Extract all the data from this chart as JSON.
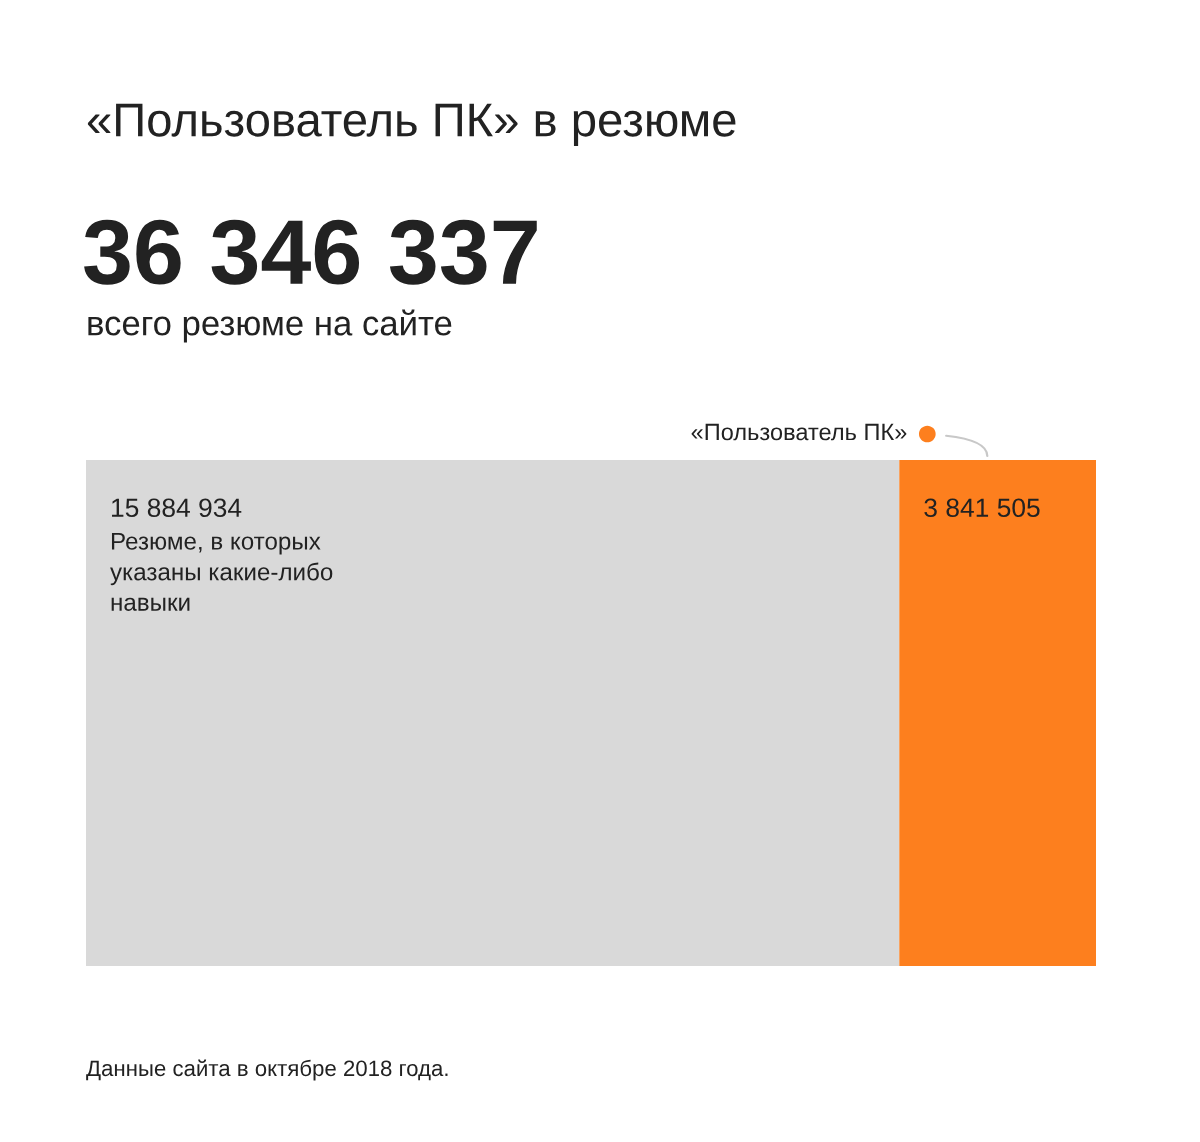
{
  "chart_data": {
    "type": "bar",
    "orientation": "horizontal",
    "stacked": true,
    "title": "«Пользователь ПК» в резюме",
    "subtitle": "36 346 337",
    "annotations": [
      "всего резюме на сайте",
      "Данные сайта в октябре 2018 года."
    ],
    "categories": [
      null
    ],
    "series": [
      {
        "name": "Резюме, в которых указаны какие-либо навыки",
        "color": "#d9d9d9",
        "values": [
          15884934
        ],
        "value_labels": [
          "15 884 934"
        ]
      },
      {
        "name": "«Пользователь ПК»",
        "color": "#fd7f1e",
        "values": [
          3841505
        ],
        "value_labels": [
          "3 841 505"
        ]
      }
    ],
    "tick_labels": false
  }
}
